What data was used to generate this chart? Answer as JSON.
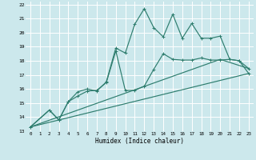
{
  "xlabel": "Humidex (Indice chaleur)",
  "bg_color": "#cce8ec",
  "grid_color": "#ffffff",
  "line_color": "#2e7d6e",
  "xlim": [
    -0.5,
    23.5
  ],
  "ylim": [
    13,
    22.2
  ],
  "xticks": [
    0,
    1,
    2,
    3,
    4,
    5,
    6,
    7,
    8,
    9,
    10,
    11,
    12,
    13,
    14,
    15,
    16,
    17,
    18,
    19,
    20,
    21,
    22,
    23
  ],
  "yticks": [
    13,
    14,
    15,
    16,
    17,
    18,
    19,
    20,
    21,
    22
  ],
  "line1_x": [
    0,
    2,
    3,
    4,
    5,
    6,
    7,
    8,
    9,
    10,
    11,
    12,
    13,
    14,
    15,
    16,
    17,
    18,
    19,
    20,
    21,
    22,
    23
  ],
  "line1_y": [
    13.3,
    14.5,
    13.8,
    15.1,
    15.8,
    16.0,
    15.85,
    16.5,
    18.9,
    18.55,
    20.6,
    21.7,
    20.35,
    19.7,
    21.3,
    19.6,
    20.65,
    19.6,
    19.6,
    19.75,
    18.1,
    18.0,
    17.45
  ],
  "line2_x": [
    0,
    2,
    3,
    4,
    5,
    6,
    7,
    8,
    9,
    10,
    11,
    12,
    13,
    14,
    15,
    16,
    17,
    18,
    19,
    20,
    21,
    22,
    23
  ],
  "line2_y": [
    13.3,
    14.5,
    13.8,
    15.1,
    15.5,
    15.85,
    15.9,
    16.45,
    18.7,
    15.9,
    15.9,
    16.2,
    17.4,
    18.5,
    18.1,
    18.05,
    18.05,
    18.2,
    18.05,
    18.05,
    18.1,
    18.0,
    17.1
  ],
  "line3_x": [
    0,
    23
  ],
  "line3_y": [
    13.3,
    17.1
  ],
  "line4_x": [
    0,
    20,
    23
  ],
  "line4_y": [
    13.3,
    18.1,
    17.45
  ]
}
